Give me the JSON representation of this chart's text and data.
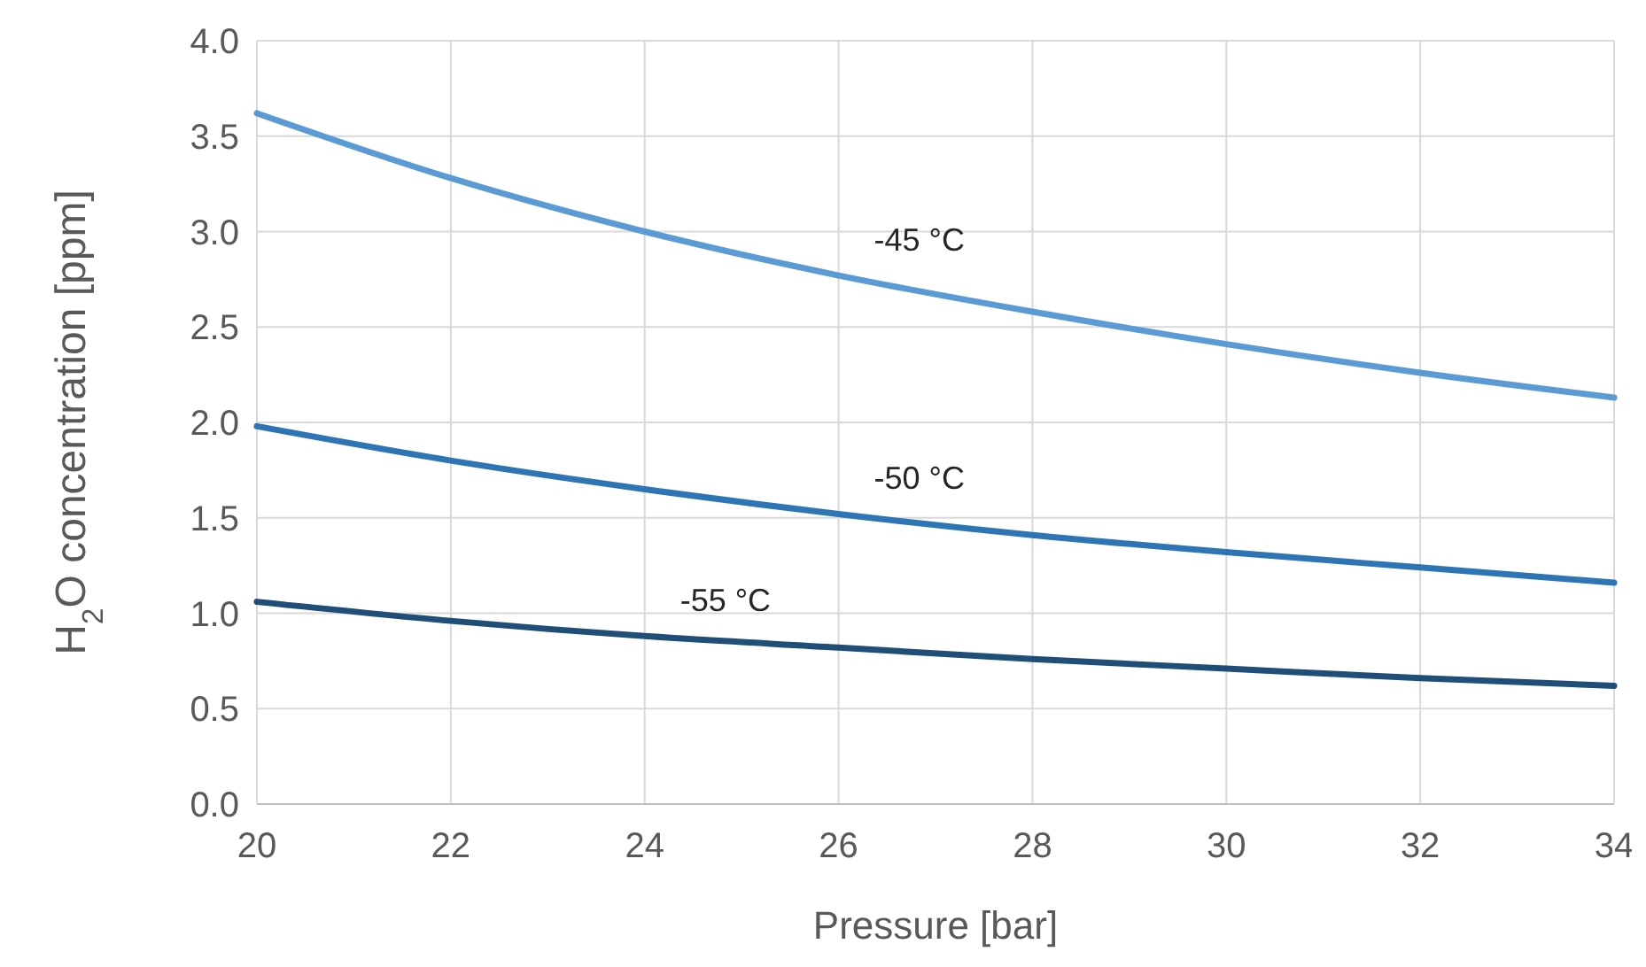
{
  "chart_data": {
    "type": "line",
    "xlabel": "Pressure [bar]",
    "ylabel": "H$_{2}$O concentration [ppm]",
    "x": [
      20,
      22,
      24,
      26,
      28,
      30,
      32,
      34
    ],
    "series": [
      {
        "name": "-45 °C",
        "color": "#5b9bd5",
        "values": [
          3.62,
          3.28,
          3.0,
          2.77,
          2.58,
          2.41,
          2.26,
          2.13
        ]
      },
      {
        "name": "-50 °C",
        "color": "#2e75b6",
        "values": [
          1.98,
          1.8,
          1.65,
          1.52,
          1.41,
          1.32,
          1.24,
          1.16
        ]
      },
      {
        "name": "-55 °C",
        "color": "#1f4e79",
        "values": [
          1.06,
          0.96,
          0.88,
          0.82,
          0.76,
          0.71,
          0.66,
          0.62
        ]
      }
    ],
    "xlim": [
      20,
      34
    ],
    "xticks": [
      20,
      22,
      24,
      26,
      28,
      30,
      32,
      34
    ],
    "ylim": [
      0,
      4
    ],
    "yticks": [
      {
        "value": 0,
        "label": "0.0"
      },
      {
        "value": 0.5,
        "label": "0.5"
      },
      {
        "value": 1,
        "label": "1.0"
      },
      {
        "value": 1.5,
        "label": "1.5"
      },
      {
        "value": 2,
        "label": "2.0"
      },
      {
        "value": 2.5,
        "label": "2.5"
      },
      {
        "value": 3,
        "label": "3.0"
      },
      {
        "value": 3.5,
        "label": "3.5"
      },
      {
        "value": 4,
        "label": "4.0"
      }
    ],
    "grid": true,
    "marker": "none",
    "line_style": "solid"
  }
}
